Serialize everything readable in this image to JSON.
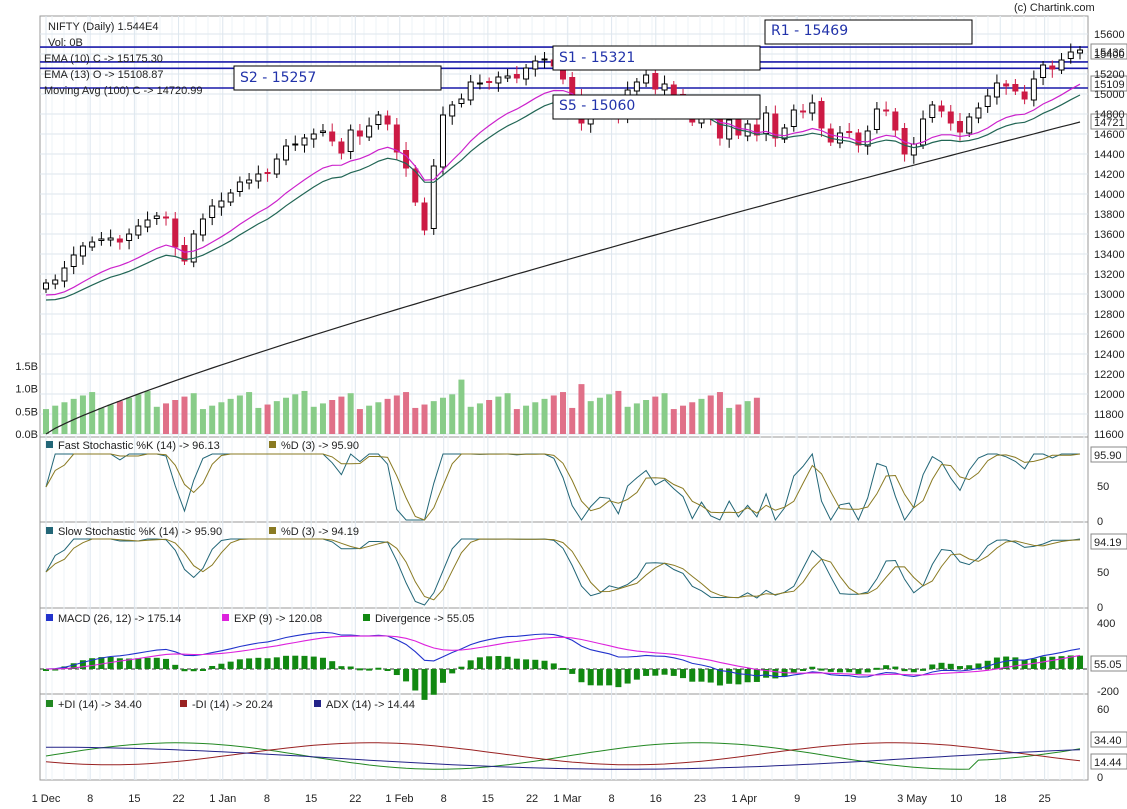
{
  "header": {
    "title": "NIFTY (Daily) 1.544E4",
    "vol": "Vol: 0B",
    "credit": "(c) Chartink.com"
  },
  "price_panel": {
    "legend": [
      "EMA (10) C -> 15175.30",
      "EMA (13) O -> 15108.87",
      "Moving Avg (100) C -> 14720.99"
    ],
    "levels": [
      {
        "label": "R1 - 15469",
        "value": 15469
      },
      {
        "label": "S1 - 15321",
        "value": 15321
      },
      {
        "label": "S2 - 15257",
        "value": 15257
      },
      {
        "label": "S5 - 15060",
        "value": 15060
      }
    ],
    "price_badges": [
      "15436",
      "15109",
      "14721"
    ]
  },
  "fast_stoch": {
    "legend_k": "Fast Stochastic %K (14) -> 96.13",
    "legend_d": "%D (3) -> 95.90",
    "badge": "95.90"
  },
  "slow_stoch": {
    "legend_k": "Slow Stochastic %K (14) -> 95.90",
    "legend_d": "%D (3) -> 94.19",
    "badge": "94.19"
  },
  "macd": {
    "legend_macd": "MACD (26, 12) -> 175.14",
    "legend_exp": "EXP (9) -> 120.08",
    "legend_div": "Divergence -> 55.05",
    "badges": [
      "55.05"
    ]
  },
  "adx": {
    "legend_pdi": "+DI (14) -> 34.40",
    "legend_mdi": "-DI (14) -> 20.24",
    "legend_adx": "ADX (14) -> 14.44",
    "badges": [
      "34.40",
      "14.44"
    ]
  },
  "colors": {
    "up_candle": "#ffffff",
    "down_candle": "#cc1a44",
    "ema10": "#cc22cc",
    "ema13": "#226655",
    "ma100": "#222222",
    "level_line": "#1a1aaa",
    "vol_up": "#88cc88",
    "vol_down": "#e07088",
    "stoch_k": "#226677",
    "stoch_d": "#8a7a22",
    "macd": "#2233cc",
    "macd_exp": "#dd22dd",
    "divergence": "#118811",
    "pdi": "#228822",
    "mdi": "#992222",
    "adx_line": "#222288"
  },
  "chart_data": [
    {
      "type": "candlestick",
      "title": "NIFTY (Daily) 1.544E4",
      "y_ticks": [
        15600,
        15400,
        15200,
        15000,
        14800,
        14600,
        14400,
        14200,
        14000,
        13800,
        13600,
        13400,
        13200,
        13000,
        12800,
        12600,
        12400,
        12200,
        12000,
        11800,
        11600
      ],
      "ylim": [
        11600,
        15600
      ],
      "x_ticks": [
        "1 Dec",
        "8",
        "15",
        "22",
        "1 Jan",
        "8",
        "15",
        "22",
        "1 Feb",
        "8",
        "15",
        "22",
        "1 Mar",
        "8",
        "16",
        "23",
        "1 Apr",
        "9",
        "19",
        "3 May",
        "10",
        "18",
        "25"
      ],
      "close": [
        13110,
        13140,
        13260,
        13390,
        13480,
        13520,
        13550,
        13560,
        13520,
        13600,
        13680,
        13740,
        13780,
        13760,
        13470,
        13330,
        13600,
        13750,
        13880,
        13930,
        14010,
        14120,
        14140,
        14200,
        14210,
        14350,
        14480,
        14500,
        14560,
        14600,
        14630,
        14530,
        14410,
        14640,
        14580,
        14680,
        14790,
        14700,
        14420,
        14260,
        13920,
        13640,
        14280,
        14790,
        14890,
        14950,
        15120,
        15110,
        15120,
        15170,
        15180,
        15160,
        15260,
        15330,
        15350,
        15280,
        15150,
        14990,
        14710,
        14840,
        14930,
        14920,
        14770,
        15040,
        15120,
        15190,
        15050,
        15100,
        14980,
        14880,
        14720,
        14840,
        14750,
        14560,
        14740,
        14590,
        14700,
        14590,
        14810,
        14560,
        14660,
        14840,
        14820,
        14910,
        14660,
        14520,
        14610,
        14620,
        14490,
        14630,
        14850,
        14830,
        14640,
        14400,
        14500,
        14750,
        14890,
        14830,
        14710,
        14620,
        14770,
        14860,
        14980,
        15110,
        15080,
        15030,
        14950,
        15150,
        15290,
        15250,
        15340,
        15420,
        15440
      ],
      "ma100_end": 14720.99,
      "ema10_end": 15175.3,
      "ema13_end": 15108.87,
      "levels": {
        "R1": 15469,
        "S1": 15321,
        "S2": 15257,
        "S5": 15060
      }
    },
    {
      "type": "bar",
      "name": "Volume",
      "y_ticks": [
        "1.5B",
        "1.0B",
        "0.5B",
        "0.0B"
      ],
      "ylim": [
        0,
        1.5
      ]
    },
    {
      "type": "line",
      "name": "Fast Stochastic",
      "y_ticks": [
        50,
        0
      ],
      "ylim": [
        0,
        100
      ],
      "series": [
        {
          "name": "%K (14)",
          "last": 96.13
        },
        {
          "name": "%D (3)",
          "last": 95.9
        }
      ]
    },
    {
      "type": "line",
      "name": "Slow Stochastic",
      "y_ticks": [
        50,
        0
      ],
      "ylim": [
        0,
        100
      ],
      "series": [
        {
          "name": "%K (14)",
          "last": 95.9
        },
        {
          "name": "%D (3)",
          "last": 94.19
        }
      ]
    },
    {
      "type": "line",
      "name": "MACD",
      "y_ticks": [
        400,
        -200
      ],
      "ylim": [
        -300,
        450
      ],
      "series": [
        {
          "name": "MACD (26, 12)",
          "last": 175.14
        },
        {
          "name": "EXP (9)",
          "last": 120.08
        },
        {
          "name": "Divergence",
          "last": 55.05
        }
      ]
    },
    {
      "type": "line",
      "name": "DMI",
      "y_ticks": [
        60,
        0
      ],
      "ylim": [
        0,
        65
      ],
      "series": [
        {
          "name": "+DI (14)",
          "last": 34.4
        },
        {
          "name": "-DI (14)",
          "last": 20.24
        },
        {
          "name": "ADX (14)",
          "last": 14.44
        }
      ]
    }
  ]
}
